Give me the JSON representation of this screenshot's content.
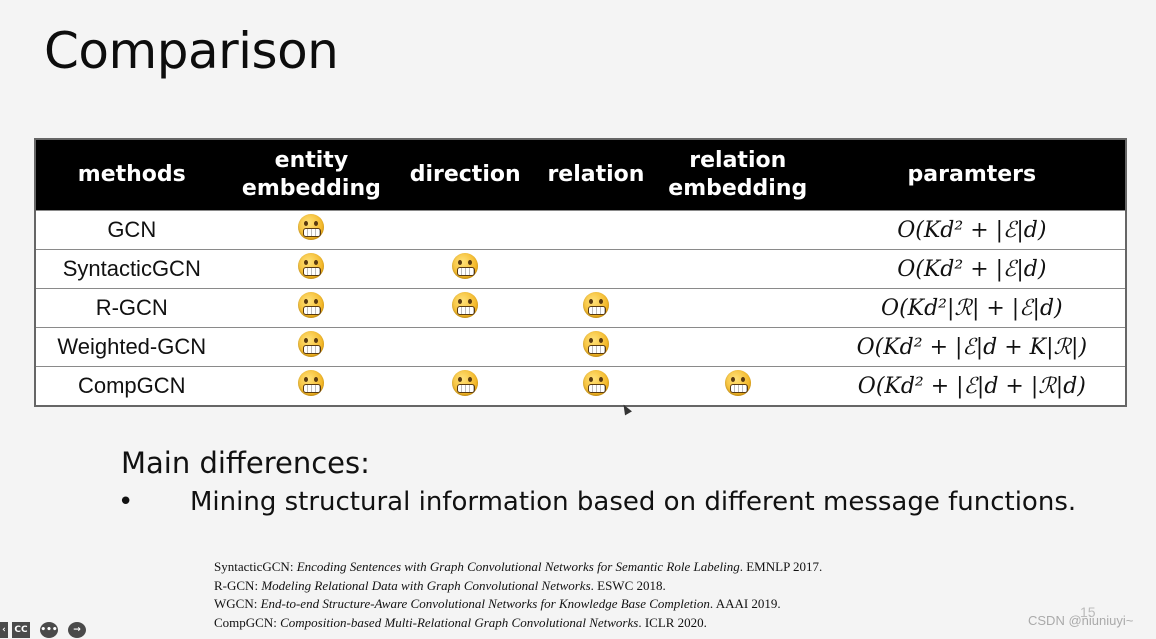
{
  "slide": {
    "title": "Comparison",
    "table": {
      "headers": [
        "methods",
        "entity embedding",
        "direction",
        "relation",
        "relation embedding",
        "paramters"
      ],
      "rows": [
        {
          "method": "GCN",
          "entity": true,
          "direction": false,
          "relation": false,
          "relation_embedding": false,
          "params": "O(Kd² + |ℰ|d)"
        },
        {
          "method": "SyntacticGCN",
          "entity": true,
          "direction": true,
          "relation": false,
          "relation_embedding": false,
          "params": "O(Kd² + |ℰ|d)"
        },
        {
          "method": "R-GCN",
          "entity": true,
          "direction": true,
          "relation": true,
          "relation_embedding": false,
          "params": "O(Kd²|ℛ| + |ℰ|d)"
        },
        {
          "method": "Weighted-GCN",
          "entity": true,
          "direction": false,
          "relation": true,
          "relation_embedding": false,
          "params": "O(Kd² + |ℰ|d + K|ℛ|)"
        },
        {
          "method": "CompGCN",
          "entity": true,
          "direction": true,
          "relation": true,
          "relation_embedding": true,
          "params": "O(Kd² + |ℰ|d + |ℛ|d)"
        }
      ],
      "check_icon": "grinning-face-emoji"
    },
    "main_differences": {
      "heading": "Main differences:",
      "bullet_symbol": "•",
      "bullets": [
        "Mining structural information based on different message functions."
      ]
    },
    "references": [
      {
        "name": "SyntacticGCN:",
        "title": "Encoding Sentences with Graph Convolutional Networks for Semantic Role Labeling",
        "venue": ". EMNLP 2017."
      },
      {
        "name": "R-GCN:",
        "title": "Modeling Relational Data with Graph Convolutional Networks",
        "venue": ". ESWC 2018."
      },
      {
        "name": "WGCN:",
        "title": "End-to-end Structure-Aware Convolutional Networks for Knowledge Base Completion",
        "venue": ". AAAI 2019."
      },
      {
        "name": "CompGCN:",
        "title": "Composition-based Multi-Relational Graph Convolutional Networks",
        "venue": ". ICLR 2020."
      }
    ],
    "page_number": "15"
  },
  "watermark": "CSDN @niuniuyi~",
  "player_controls": [
    {
      "icon": "chevron-icon",
      "glyph": "‹"
    },
    {
      "icon": "closed-captions-icon",
      "glyph": "CC"
    },
    {
      "icon": "more-options-icon",
      "glyph": "•••"
    },
    {
      "icon": "next-arrow-icon",
      "glyph": "→"
    }
  ],
  "colors": {
    "header_bg": "#000000",
    "header_text": "#ffffff",
    "emoji": "#f2b21e"
  }
}
